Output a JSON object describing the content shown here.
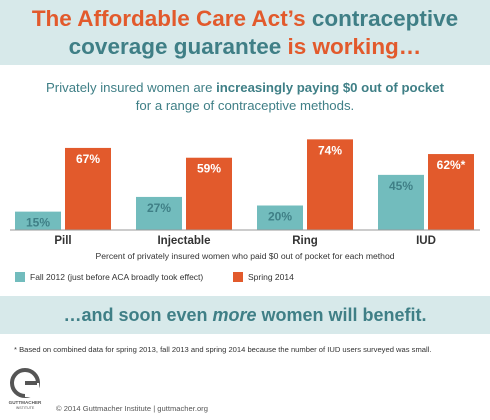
{
  "header": {
    "line1_orange": "The Affordable Care Act’s",
    "line1_teal": " contraceptive",
    "line2_teal": "coverage guarantee ",
    "line2_orange": "is working…"
  },
  "subtitle": {
    "line1_a": "Privately insured women are ",
    "line1_b": "increasingly paying $0 out of pocket",
    "line2": "for a range of contraceptive methods."
  },
  "colors": {
    "fall": "#72bcbd",
    "spring": "#e25a2c",
    "teal_text": "#3f7f86",
    "orange_text": "#e25a2c",
    "band": "#d7e9ea"
  },
  "chart_data": {
    "type": "bar",
    "categories": [
      "Pill",
      "Injectable",
      "Ring",
      "IUD"
    ],
    "series": [
      {
        "name": "Fall 2012 (just before ACA broadly took effect)",
        "values": [
          15,
          27,
          20,
          45
        ],
        "labels": [
          "15%",
          "27%",
          "20%",
          "45%"
        ]
      },
      {
        "name": "Spring 2014",
        "values": [
          67,
          59,
          74,
          62
        ],
        "labels": [
          "67%",
          "59%",
          "74%",
          "62%*"
        ]
      }
    ],
    "xlabel": "Percent of privately insured women who paid $0 out of pocket for each method",
    "ylim": [
      0,
      80
    ],
    "grid": false,
    "legend_position": "bottom"
  },
  "tagline": {
    "a": "…and soon even ",
    "b": "more",
    "c": " women will benefit."
  },
  "footnote": "* Based on combined data for spring 2013, fall 2013 and spring 2014 because the number of IUD users surveyed was small.",
  "logo_text": "GUTTMACHER INSTITUTE",
  "copyright": "© 2014 Guttmacher Institute  |  guttmacher.org"
}
